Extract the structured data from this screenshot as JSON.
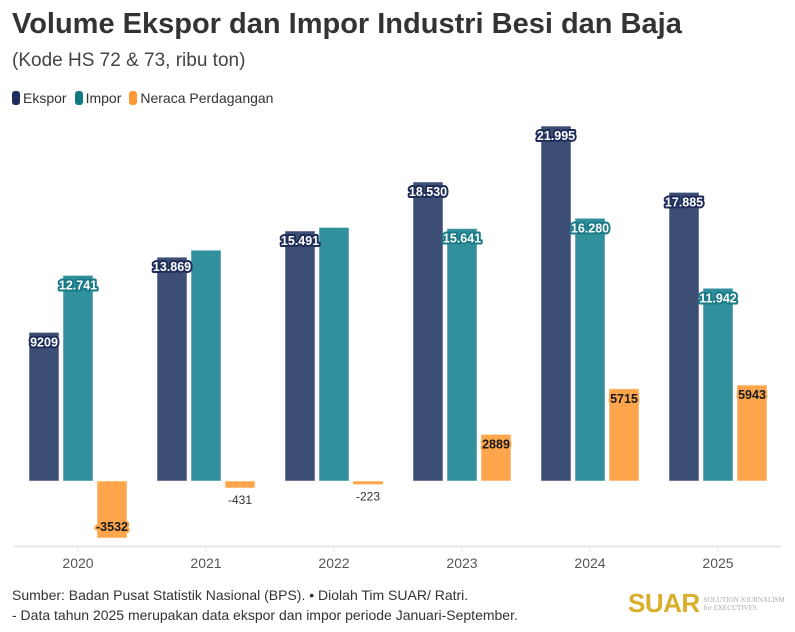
{
  "header": {
    "title": "Volume Ekspor dan Impor Industri Besi dan Baja",
    "subtitle": "(Kode HS 72 & 73, ribu ton)"
  },
  "legend": [
    {
      "label": "Ekspor",
      "color": "#3d4e74"
    },
    {
      "label": "Impor",
      "color": "#30909c"
    },
    {
      "label": "Neraca Perdagangan",
      "color": "#ffa64d"
    }
  ],
  "chart_data": {
    "type": "bar",
    "title": "Volume Ekspor dan Impor Industri Besi dan Baja",
    "subtitle": "(Kode HS 72 & 73, ribu ton)",
    "xlabel": "",
    "ylabel": "",
    "categories": [
      "2020",
      "2021",
      "2022",
      "2023",
      "2024",
      "2025"
    ],
    "series": [
      {
        "name": "Ekspor",
        "color": "#3d4e74",
        "label_outline": "#1f2d5a",
        "values": [
          9209,
          13869,
          15491,
          18530,
          21995,
          17885
        ],
        "labels": [
          "9209",
          "13.869",
          "15.491",
          "18.530",
          "21.995",
          "17.885"
        ]
      },
      {
        "name": "Impor",
        "color": "#30909c",
        "label_outline": "#1b7a87",
        "values": [
          12741,
          14300,
          15714,
          15641,
          16280,
          11942
        ],
        "labels": [
          "12.741",
          "",
          "",
          "15.641",
          "16.280",
          "11.942"
        ]
      },
      {
        "name": "Neraca Perdagangan",
        "color": "#ffa64d",
        "label_outline": "#ffa64d",
        "values": [
          -3532,
          -431,
          -223,
          2889,
          5715,
          5943
        ],
        "labels": [
          "-3532",
          "-431",
          "-223",
          "2889",
          "5715",
          "5943"
        ]
      }
    ],
    "ylim": [
      -3532,
      21995
    ],
    "grid": false,
    "legend_position": "top-left"
  },
  "footer": {
    "source": "Sumber: Badan Pusat Statistik Nasional (BPS). • Diolah Tim SUAR/ Ratri.",
    "note": "- Data tahun 2025 merupakan data ekspor dan impor periode Januari-September."
  },
  "logo": {
    "name": "SUAR",
    "tagline_1": "SOLUTION JOURNALISM",
    "tagline_2": "for EXECUTIVES"
  }
}
